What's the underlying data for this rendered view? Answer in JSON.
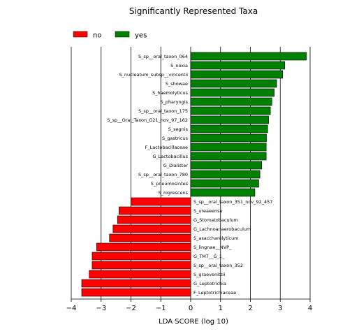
{
  "chart_data": {
    "type": "bar",
    "orientation": "horizontal",
    "title": "Significantly Represented Taxa",
    "xlabel": "LDA SCORE (log 10)",
    "ylabel": "",
    "xlim": [
      -4,
      4
    ],
    "xticks": [
      -4,
      -3,
      -2,
      -1,
      0,
      1,
      2,
      3,
      4
    ],
    "xtick_labels": [
      "−4",
      "−3",
      "−2",
      "−1",
      "0",
      "1",
      "2",
      "3",
      "4"
    ],
    "grid": "vertical",
    "legend_position": "top-left",
    "legend": [
      {
        "name": "no",
        "color": "#ff0000"
      },
      {
        "name": "yes",
        "color": "#008000"
      }
    ],
    "bars": [
      {
        "label": "S_sp__oral_taxon_064",
        "value": 3.88,
        "group": "yes"
      },
      {
        "label": "S_noxia",
        "value": 3.15,
        "group": "yes"
      },
      {
        "label": "S_nucleatum_subsp__vincentii",
        "value": 3.08,
        "group": "yes"
      },
      {
        "label": "S_showae",
        "value": 2.88,
        "group": "yes"
      },
      {
        "label": "S_haemolyticus",
        "value": 2.8,
        "group": "yes"
      },
      {
        "label": "S_pharyngis",
        "value": 2.72,
        "group": "yes"
      },
      {
        "label": "S_sp__oral_taxon_175",
        "value": 2.67,
        "group": "yes"
      },
      {
        "label": "S_sp__Oral_Taxon_G21_nov_97_162",
        "value": 2.61,
        "group": "yes"
      },
      {
        "label": "S_segnis",
        "value": 2.58,
        "group": "yes"
      },
      {
        "label": "S_gastricus",
        "value": 2.54,
        "group": "yes"
      },
      {
        "label": "F_Lactobacillaceae",
        "value": 2.53,
        "group": "yes"
      },
      {
        "label": "G_Lactobacillus",
        "value": 2.53,
        "group": "yes"
      },
      {
        "label": "G_Dialister",
        "value": 2.38,
        "group": "yes"
      },
      {
        "label": "S_sp__oral_taxon_780",
        "value": 2.32,
        "group": "yes"
      },
      {
        "label": "S_pneumosintes",
        "value": 2.28,
        "group": "yes"
      },
      {
        "label": "S_nigrescens",
        "value": 2.15,
        "group": "yes"
      },
      {
        "label": "S_sp__oral_taxon_351_nov_92_457",
        "value": -2.0,
        "group": "no"
      },
      {
        "label": "S_ureaeense",
        "value": -2.4,
        "group": "no"
      },
      {
        "label": "G_Stomatobaculum",
        "value": -2.45,
        "group": "no"
      },
      {
        "label": "G_Lachnoanaerobaculum",
        "value": -2.6,
        "group": "no"
      },
      {
        "label": "S_asaccharolyticum",
        "value": -2.72,
        "group": "no"
      },
      {
        "label": "S_lingnae__NVP_",
        "value": -3.15,
        "group": "no"
      },
      {
        "label": "G_TM7__G_1_",
        "value": -3.3,
        "group": "no"
      },
      {
        "label": "S_sp__oral_taxon_352",
        "value": -3.3,
        "group": "no"
      },
      {
        "label": "S_graevenitzii",
        "value": -3.4,
        "group": "no"
      },
      {
        "label": "G_Leptotrichia",
        "value": -3.65,
        "group": "no"
      },
      {
        "label": "F_Leptotrichiaceae",
        "value": -3.65,
        "group": "no"
      }
    ]
  }
}
